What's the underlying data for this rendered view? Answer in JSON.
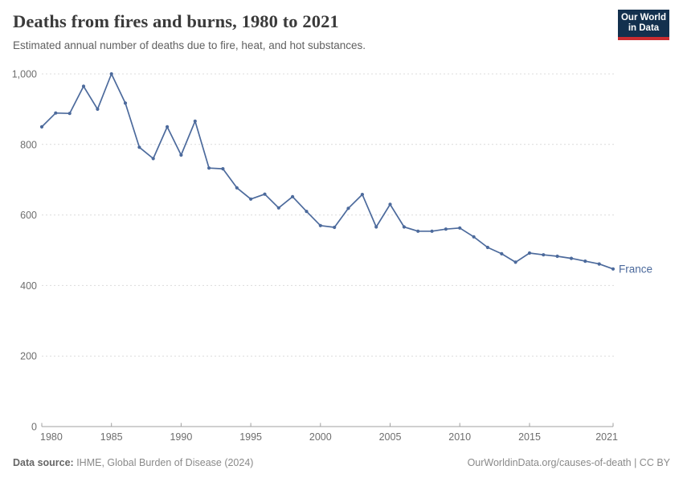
{
  "header": {
    "title": "Deaths from fires and burns, 1980 to 2021",
    "subtitle": "Estimated annual number of deaths due to fire, heat, and hot substances."
  },
  "logo": {
    "line1": "Our World",
    "line2": "in Data",
    "bg_color": "#13304e",
    "accent_color": "#cb2c30"
  },
  "chart_data": {
    "type": "line",
    "title": "Deaths from fires and burns, 1980 to 2021",
    "subtitle": "Estimated annual number of deaths due to fire, heat, and hot substances.",
    "x": [
      1980,
      1981,
      1982,
      1983,
      1984,
      1985,
      1986,
      1987,
      1988,
      1989,
      1990,
      1991,
      1992,
      1993,
      1994,
      1995,
      1996,
      1997,
      1998,
      1999,
      2000,
      2001,
      2002,
      2003,
      2004,
      2005,
      2006,
      2007,
      2008,
      2009,
      2010,
      2011,
      2012,
      2013,
      2014,
      2015,
      2016,
      2017,
      2018,
      2019,
      2020,
      2021
    ],
    "series": [
      {
        "name": "France",
        "color": "#4c6a9c",
        "values": [
          850,
          889,
          888,
          965,
          900,
          1000,
          917,
          792,
          760,
          850,
          770,
          866,
          733,
          731,
          677,
          645,
          659,
          620,
          652,
          610,
          570,
          565,
          619,
          658,
          566,
          630,
          566,
          554,
          554,
          560,
          563,
          538,
          508,
          490,
          466,
          492,
          487,
          483,
          477,
          469,
          461,
          447
        ]
      }
    ],
    "xlim": [
      1980,
      2021
    ],
    "ylim": [
      0,
      1000
    ],
    "xticks": [
      1980,
      1985,
      1990,
      1995,
      2000,
      2005,
      2010,
      2015,
      2021
    ],
    "yticks": [
      0,
      200,
      400,
      600,
      800,
      1000
    ],
    "ytick_labels": [
      "0",
      "200",
      "400",
      "600",
      "800",
      "1,000"
    ],
    "grid": "horizontal-dashed",
    "legend": "series-label-at-line-end",
    "colors": {
      "gridline": "#dcdcdc",
      "axis": "#a1a1a1",
      "tick_label": "#6e6e6e"
    }
  },
  "footer": {
    "source_label": "Data source:",
    "source_text": " IHME, Global Burden of Disease (2024)",
    "attribution": "OurWorldinData.org/causes-of-death | CC BY"
  }
}
